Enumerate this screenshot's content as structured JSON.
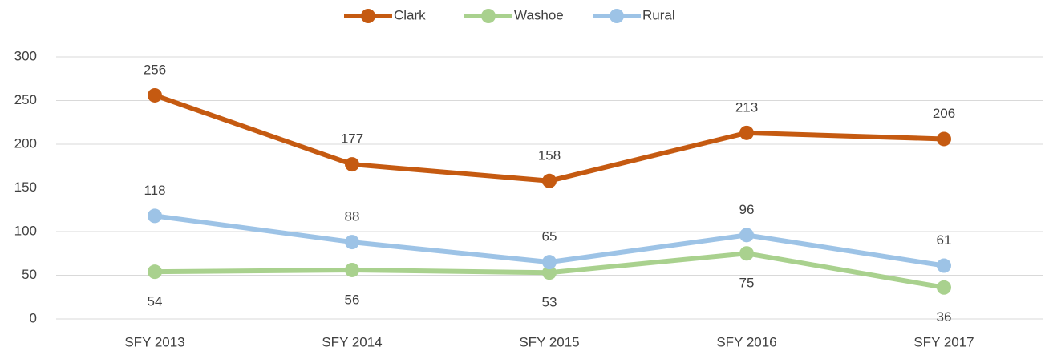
{
  "chart_data": {
    "type": "line",
    "categories": [
      "SFY 2013",
      "SFY 2014",
      "SFY 2015",
      "SFY 2016",
      "SFY 2017"
    ],
    "series": [
      {
        "name": "Clark",
        "color": "#c55a11",
        "values": [
          256,
          177,
          158,
          213,
          206
        ]
      },
      {
        "name": "Washoe",
        "color": "#a9d18e",
        "values": [
          54,
          56,
          53,
          75,
          36
        ]
      },
      {
        "name": "Rural",
        "color": "#9dc3e6",
        "values": [
          118,
          88,
          65,
          96,
          61
        ]
      }
    ],
    "ylim": [
      0,
      300
    ],
    "yticks": [
      0,
      50,
      100,
      150,
      200,
      250,
      300
    ],
    "grid": true,
    "legend": "top"
  }
}
